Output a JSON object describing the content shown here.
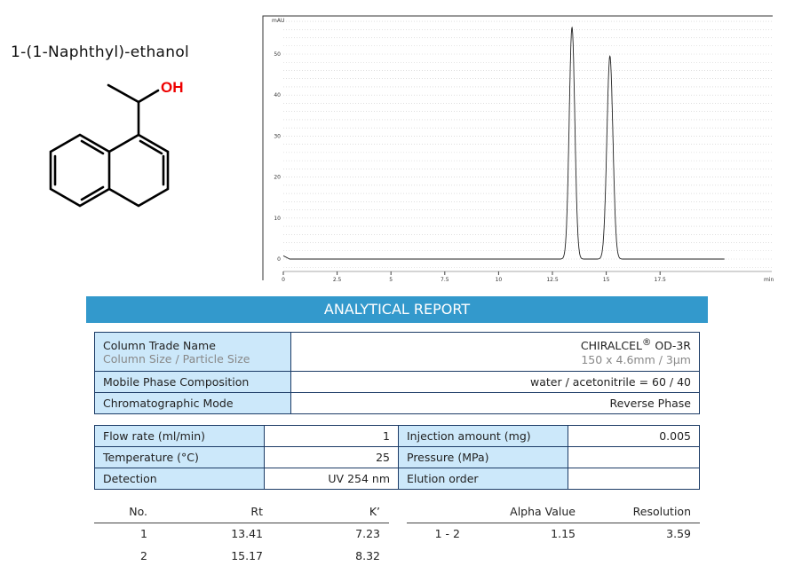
{
  "compound": {
    "name": "1-(1-Naphthyl)-ethanol",
    "oh_label": "OH"
  },
  "report_title": "ANALYTICAL REPORT",
  "column": {
    "trade_name_label": "Column Trade Name",
    "size_label": "Column Size / Particle Size",
    "trade_name": "CHIRALCEL",
    "reg": "®",
    "model": "OD-3R",
    "size": "150 x 4.6mm / 3µm",
    "mobile_phase_label": "Mobile Phase Composition",
    "mobile_phase": "water / acetonitrile = 60 / 40",
    "mode_label": "Chromatographic Mode",
    "mode": "Reverse Phase"
  },
  "conditions": {
    "flow_label": "Flow rate (ml/min)",
    "flow": "1",
    "temp_label": "Temperature (°C)",
    "temp": "25",
    "detection_label": "Detection",
    "detection": "UV 254 nm",
    "injection_label": "Injection amount (mg)",
    "injection": "0.005",
    "pressure_label": "Pressure (MPa)",
    "pressure": "",
    "elution_label": "Elution order",
    "elution": ""
  },
  "results": {
    "headers": [
      "No.",
      "Rt",
      "K’",
      "Alpha Value",
      "Resolution"
    ],
    "rows": [
      [
        "1",
        "13.41",
        "7.23"
      ],
      [
        "2",
        "15.17",
        "8.32"
      ]
    ],
    "pair": "1 - 2",
    "alpha": "1.15",
    "resolution": "3.59"
  },
  "chart_data": {
    "type": "line",
    "ylabel": "mAU",
    "xlabel": "min",
    "xlim": [
      0,
      20
    ],
    "ylim": [
      -3,
      60
    ],
    "xticks": [
      "0",
      "2.5",
      "5",
      "7.5",
      "10",
      "12.5",
      "15",
      "17.5"
    ],
    "yticks": [
      "0",
      "10",
      "20",
      "30",
      "40",
      "50"
    ],
    "grid": true,
    "peaks": [
      {
        "rt": 13.41,
        "height": 56.5,
        "width": 0.13
      },
      {
        "rt": 15.17,
        "height": 49.5,
        "width": 0.14
      }
    ],
    "baseline": 0
  }
}
